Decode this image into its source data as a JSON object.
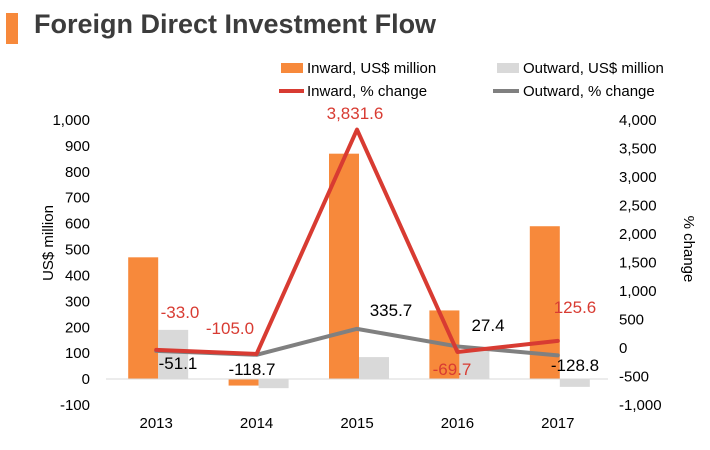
{
  "page": {
    "title": "Foreign Direct Investment Flow"
  },
  "colors": {
    "accent": "#f7893b",
    "inward_line": "#d83b32",
    "outward_bar": "#d9d9d9",
    "outward_line": "#808080"
  },
  "chart_data": {
    "type": "bar",
    "categories": [
      "2013",
      "2014",
      "2015",
      "2016",
      "2017"
    ],
    "ylabel": "US$ million",
    "y2label": "% change",
    "ylim": [
      -100,
      1000
    ],
    "y2lim": [
      -1000,
      4000
    ],
    "yticks": [
      -100,
      0,
      100,
      200,
      300,
      400,
      500,
      600,
      700,
      800,
      900,
      1000
    ],
    "y2ticks": [
      -1000,
      -500,
      0,
      500,
      1000,
      1500,
      2000,
      2500,
      3000,
      3500,
      4000
    ],
    "ytick_labels": [
      "-100",
      "0",
      "100",
      "200",
      "300",
      "400",
      "500",
      "600",
      "700",
      "800",
      "900",
      "1,000"
    ],
    "y2tick_labels": [
      "-1,000",
      "-500",
      "0",
      "500",
      "1,000",
      "1,500",
      "2,000",
      "2,500",
      "3,000",
      "3,500",
      "4,000"
    ],
    "legend_position": "top-right",
    "series": [
      {
        "name": "Inward, US$ million",
        "type": "bar",
        "axis": "left",
        "color": "#f7893b",
        "values": [
          470,
          -25,
          870,
          265,
          590
        ]
      },
      {
        "name": "Outward, US$ million",
        "type": "bar",
        "axis": "left",
        "color": "#d9d9d9",
        "values": [
          190,
          -35,
          85,
          110,
          -30
        ]
      },
      {
        "name": "Inward, % change",
        "type": "line",
        "axis": "right",
        "color": "#d83b32",
        "values": [
          -33.0,
          -105.0,
          3831.6,
          -69.7,
          125.6
        ],
        "labels": [
          "-33.0",
          "-105.0",
          "3,831.6",
          "-69.7",
          "125.6"
        ]
      },
      {
        "name": "Outward, % change",
        "type": "line",
        "axis": "right",
        "color": "#808080",
        "values": [
          -51.1,
          -118.7,
          335.7,
          27.4,
          -128.8
        ],
        "labels": [
          "-51.1",
          "-118.7",
          "335.7",
          "27.4",
          "-128.8"
        ]
      }
    ]
  }
}
